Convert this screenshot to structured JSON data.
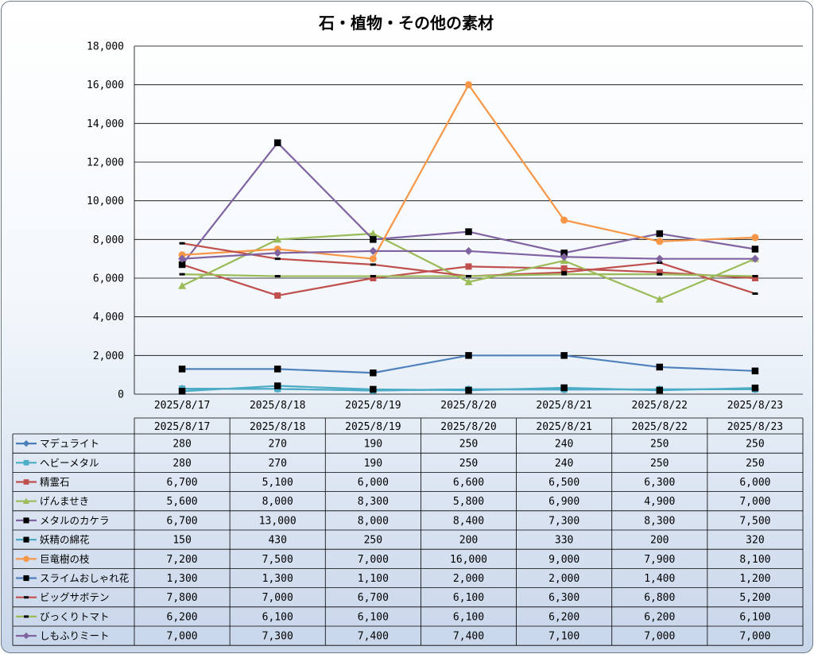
{
  "chart_data": {
    "type": "line",
    "title": "石・植物・その他の素材",
    "xlabel": "",
    "ylabel": "",
    "ylim": [
      0,
      18000
    ],
    "yticks": [
      "0",
      "2,000",
      "4,000",
      "6,000",
      "8,000",
      "10,000",
      "12,000",
      "14,000",
      "16,000",
      "18,000"
    ],
    "categories": [
      "2025/8/17",
      "2025/8/18",
      "2025/8/19",
      "2025/8/20",
      "2025/8/21",
      "2025/8/22",
      "2025/8/23"
    ],
    "grid": true,
    "legend": "data-table",
    "series": [
      {
        "name": "マデュライト",
        "color": "#4a7ebb",
        "marker": "diamond",
        "values": [
          280,
          270,
          190,
          250,
          240,
          250,
          250
        ],
        "labels": [
          "280",
          "270",
          "190",
          "250",
          "240",
          "250",
          "250"
        ]
      },
      {
        "name": "ヘビーメタル",
        "color": "#4bacc6",
        "marker": "square",
        "values": [
          280,
          270,
          190,
          250,
          240,
          250,
          250
        ],
        "labels": [
          "280",
          "270",
          "190",
          "250",
          "240",
          "250",
          "250"
        ]
      },
      {
        "name": "精霊石",
        "color": "#c0504d",
        "marker": "square",
        "values": [
          6700,
          5100,
          6000,
          6600,
          6500,
          6300,
          6000
        ],
        "labels": [
          "6,700",
          "5,100",
          "6,000",
          "6,600",
          "6,500",
          "6,300",
          "6,000"
        ]
      },
      {
        "name": "げんませき",
        "color": "#9bbb59",
        "marker": "triangle",
        "values": [
          5600,
          8000,
          8300,
          5800,
          6900,
          4900,
          7000
        ],
        "labels": [
          "5,600",
          "8,000",
          "8,300",
          "5,800",
          "6,900",
          "4,900",
          "7,000"
        ]
      },
      {
        "name": "メタルのカケラ",
        "color": "#8064a2",
        "marker": "blacksquare",
        "values": [
          6700,
          13000,
          8000,
          8400,
          7300,
          8300,
          7500
        ],
        "labels": [
          "6,700",
          "13,000",
          "8,000",
          "8,400",
          "7,300",
          "8,300",
          "7,500"
        ]
      },
      {
        "name": "妖精の綿花",
        "color": "#4bacc6",
        "marker": "blacksquare",
        "values": [
          150,
          430,
          250,
          200,
          330,
          200,
          320
        ],
        "labels": [
          "150",
          "430",
          "250",
          "200",
          "330",
          "200",
          "320"
        ]
      },
      {
        "name": "巨竜樹の枝",
        "color": "#f79646",
        "marker": "circle",
        "values": [
          7200,
          7500,
          7000,
          16000,
          9000,
          7900,
          8100
        ],
        "labels": [
          "7,200",
          "7,500",
          "7,000",
          "16,000",
          "9,000",
          "7,900",
          "8,100"
        ]
      },
      {
        "name": "スライムおしゃれ花",
        "color": "#4f81bd",
        "marker": "blacksquare",
        "values": [
          1300,
          1300,
          1100,
          2000,
          2000,
          1400,
          1200
        ],
        "labels": [
          "1,300",
          "1,300",
          "1,100",
          "2,000",
          "2,000",
          "1,400",
          "1,200"
        ]
      },
      {
        "name": "ビッグサボテン",
        "color": "#c0504d",
        "marker": "dash",
        "values": [
          7800,
          7000,
          6700,
          6100,
          6300,
          6800,
          5200
        ],
        "labels": [
          "7,800",
          "7,000",
          "6,700",
          "6,100",
          "6,300",
          "6,800",
          "5,200"
        ]
      },
      {
        "name": "びっくりトマト",
        "color": "#9bbb59",
        "marker": "dash",
        "values": [
          6200,
          6100,
          6100,
          6100,
          6200,
          6200,
          6100
        ],
        "labels": [
          "6,200",
          "6,100",
          "6,100",
          "6,100",
          "6,200",
          "6,200",
          "6,100"
        ]
      },
      {
        "name": "しもふりミート",
        "color": "#8064a2",
        "marker": "diamond",
        "values": [
          7000,
          7300,
          7400,
          7400,
          7100,
          7000,
          7000
        ],
        "labels": [
          "7,000",
          "7,300",
          "7,400",
          "7,400",
          "7,100",
          "7,000",
          "7,000"
        ]
      }
    ]
  }
}
